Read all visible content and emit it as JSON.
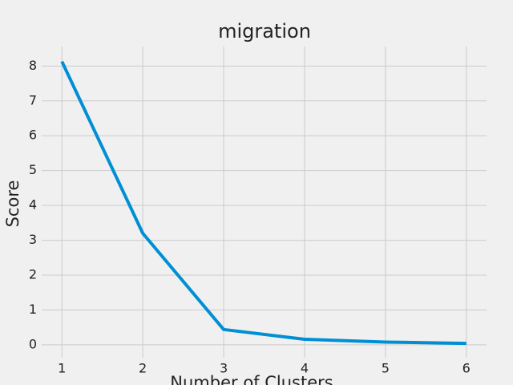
{
  "chart_data": {
    "type": "line",
    "title": "migration",
    "xlabel": "Number of Clusters",
    "ylabel": "Score",
    "x": [
      1,
      2,
      3,
      4,
      5,
      6
    ],
    "series": [
      {
        "name": "Score",
        "color": "#008fd5",
        "values": [
          8.13,
          3.2,
          0.44,
          0.16,
          0.08,
          0.04
        ]
      }
    ],
    "xlim": [
      0.75,
      6.25
    ],
    "xticks": [
      1,
      2,
      3,
      4,
      5,
      6
    ],
    "ylim": [
      -0.37,
      8.56
    ],
    "yticks": [
      0,
      1,
      2,
      3,
      4,
      5,
      6,
      7,
      8
    ],
    "grid": true
  }
}
